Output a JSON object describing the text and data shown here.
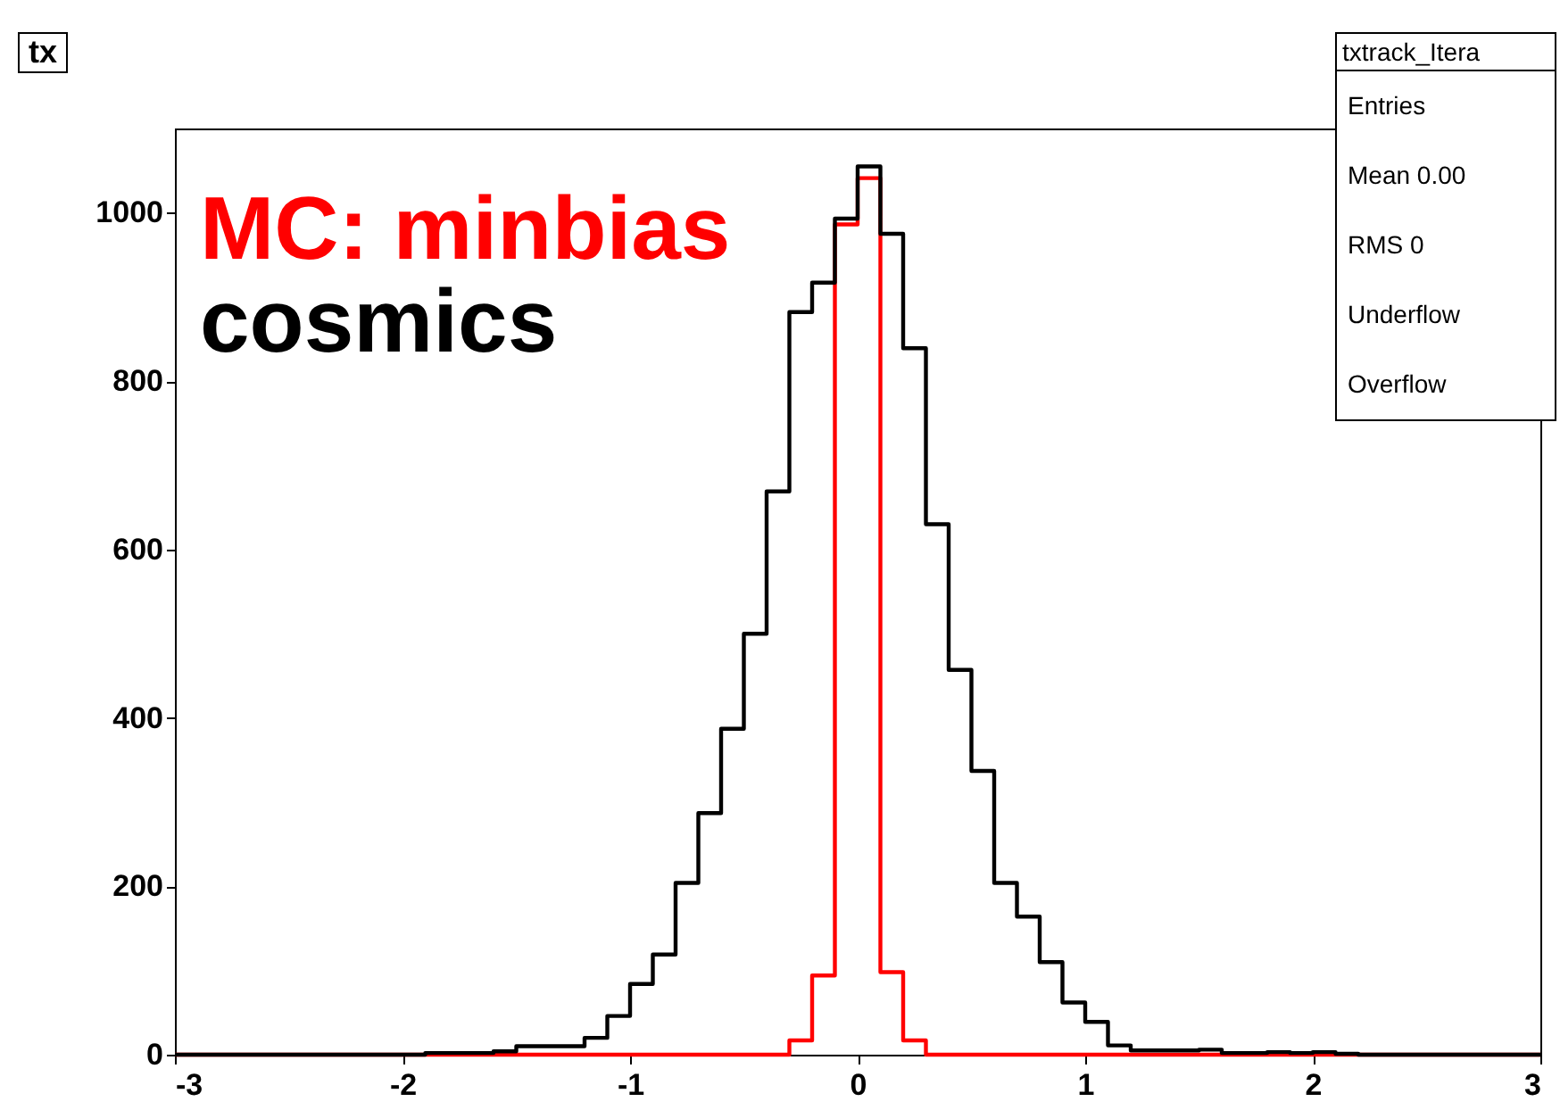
{
  "chart_data": {
    "type": "histogram",
    "title": "tx",
    "bins": [
      -3,
      -2.9,
      -2.8,
      -2.7,
      -2.6,
      -2.5,
      -2.4,
      -2.3,
      -2.2,
      -2.1,
      -2,
      -1.9,
      -1.8,
      -1.7,
      -1.6,
      -1.5,
      -1.4,
      -1.3,
      -1.2,
      -1.1,
      -1,
      -0.9,
      -0.8,
      -0.7,
      -0.6,
      -0.5,
      -0.4,
      -0.3,
      -0.2,
      -0.1,
      0,
      0.1,
      0.2,
      0.3,
      0.4,
      0.5,
      0.6,
      0.7,
      0.8,
      0.9,
      1,
      1.1,
      1.2,
      1.3,
      1.4,
      1.5,
      1.6,
      1.7,
      1.8,
      1.9,
      2,
      2.1,
      2.2,
      2.3,
      2.4,
      2.5,
      2.6,
      2.7,
      2.8,
      2.9,
      3
    ],
    "series": [
      {
        "name": "MC: minbias",
        "color": "#ff0000",
        "values": [
          0,
          0,
          0,
          0,
          0,
          0,
          0,
          0,
          0,
          0,
          0,
          0,
          0,
          0,
          0,
          0,
          0,
          0,
          0,
          0,
          0,
          0,
          0,
          0,
          0,
          0,
          0,
          17,
          94,
          986,
          1041,
          98,
          17,
          0,
          0,
          0,
          0,
          0,
          0,
          0,
          0,
          0,
          0,
          0,
          0,
          0,
          0,
          0,
          0,
          0,
          0,
          0,
          0,
          0,
          0,
          0,
          0,
          0,
          0,
          0
        ]
      },
      {
        "name": "cosmics",
        "color": "#000000",
        "values": [
          0,
          0,
          0,
          0,
          0,
          0,
          0,
          0,
          0,
          0,
          0,
          2,
          2,
          2,
          4,
          10,
          10,
          10,
          20,
          46,
          84,
          119,
          204,
          287,
          387,
          500,
          669,
          882,
          917,
          993,
          1055,
          975,
          839,
          630,
          457,
          337,
          204,
          164,
          110,
          62,
          39,
          11,
          5,
          5,
          5,
          6,
          2,
          2,
          3,
          2,
          3,
          1,
          0,
          0,
          0,
          0,
          0,
          0,
          0,
          0
        ]
      }
    ],
    "xlim": [
      -3,
      3
    ],
    "xticks": [
      -3,
      -2,
      -1,
      0,
      1,
      2,
      3
    ],
    "ylim": [
      0,
      1100
    ],
    "yticks": [
      0,
      200,
      400,
      600,
      800,
      1000
    ],
    "grid": false,
    "legend": "top left",
    "annotations": [
      "txtrack_Itera",
      "Entries",
      "Mean 0.00",
      "RMS 0",
      "Underflow",
      "Overflow"
    ]
  }
}
